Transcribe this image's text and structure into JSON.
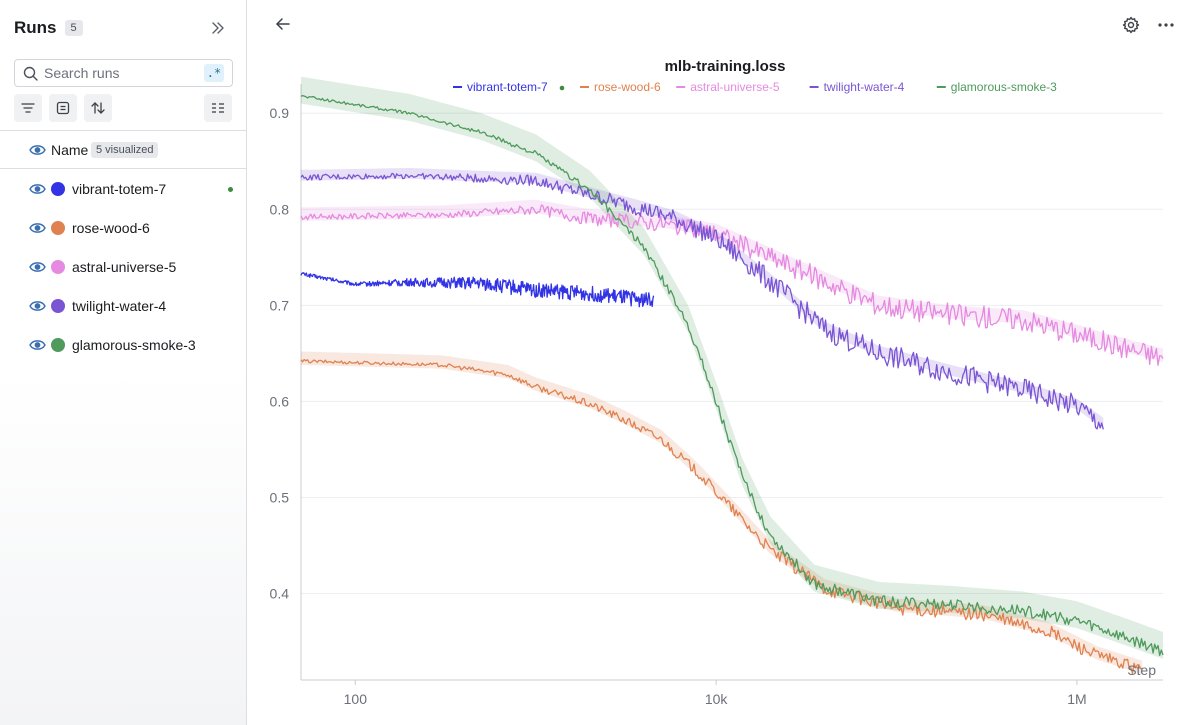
{
  "sidebar": {
    "title": "Runs",
    "runs_count": "5",
    "search": {
      "placeholder": "Search runs",
      "value": "",
      "regex_label": ".*"
    },
    "table": {
      "name_header": "Name",
      "visualized_badge": "5 visualized"
    },
    "runs": [
      {
        "name": "vibrant-totem-7",
        "color": "#3333e6",
        "live": true
      },
      {
        "name": "rose-wood-6",
        "color": "#e0824f",
        "live": false
      },
      {
        "name": "astral-universe-5",
        "color": "#e58ae0",
        "live": false
      },
      {
        "name": "twilight-water-4",
        "color": "#7a55d3",
        "live": false
      },
      {
        "name": "glamorous-smoke-3",
        "color": "#4f9a5c",
        "live": false
      }
    ]
  },
  "icons": {
    "back": "arrow-left-icon",
    "settings": "gear-icon",
    "more": "ellipsis-icon",
    "collapse": "chevrons-right-icon",
    "search": "search-icon",
    "filter": "filter-icon",
    "group": "group-icon",
    "sort": "sort-icon",
    "columns": "columns-icon",
    "visibility": "eye-icon"
  },
  "chart_data": {
    "type": "line",
    "title": "mlb-training.loss",
    "xlabel": "Step",
    "ylabel": "",
    "x_scale": "log",
    "xlim": [
      50,
      3000000
    ],
    "ylim": [
      0.31,
      0.92
    ],
    "x_ticks": [
      100,
      10000,
      1000000
    ],
    "x_tick_labels": [
      "100",
      "10k",
      "1M"
    ],
    "y_ticks": [
      0.4,
      0.5,
      0.6,
      0.7,
      0.8,
      0.9
    ],
    "y_tick_labels": [
      "0.4",
      "0.5",
      "0.6",
      "0.7",
      "0.8",
      "0.9"
    ],
    "grid": true,
    "legend_position": "top",
    "series": [
      {
        "name": "vibrant-totem-7",
        "color": "#3333e6",
        "live": true,
        "noise": 0.008,
        "band": 0,
        "points": [
          [
            50,
            0.733
          ],
          [
            100,
            0.722
          ],
          [
            200,
            0.724
          ],
          [
            500,
            0.723
          ],
          [
            1000,
            0.716
          ],
          [
            2000,
            0.712
          ],
          [
            3000,
            0.708
          ],
          [
            4500,
            0.705
          ]
        ]
      },
      {
        "name": "rose-wood-6",
        "color": "#e0824f",
        "live": false,
        "noise": 0.007,
        "band": 0.01,
        "points": [
          [
            50,
            0.642
          ],
          [
            300,
            0.638
          ],
          [
            700,
            0.628
          ],
          [
            1000,
            0.615
          ],
          [
            2000,
            0.597
          ],
          [
            3000,
            0.582
          ],
          [
            5000,
            0.56
          ],
          [
            8000,
            0.525
          ],
          [
            12000,
            0.49
          ],
          [
            20000,
            0.445
          ],
          [
            40000,
            0.405
          ],
          [
            100000,
            0.385
          ],
          [
            300000,
            0.378
          ],
          [
            700000,
            0.36
          ],
          [
            1300000,
            0.335
          ],
          [
            2300000,
            0.32
          ]
        ]
      },
      {
        "name": "astral-universe-5",
        "color": "#e58ae0",
        "live": false,
        "noise": 0.012,
        "band": 0.01,
        "points": [
          [
            50,
            0.792
          ],
          [
            300,
            0.794
          ],
          [
            1000,
            0.8
          ],
          [
            2000,
            0.79
          ],
          [
            5000,
            0.785
          ],
          [
            10000,
            0.775
          ],
          [
            20000,
            0.75
          ],
          [
            40000,
            0.725
          ],
          [
            80000,
            0.7
          ],
          [
            200000,
            0.69
          ],
          [
            500000,
            0.685
          ],
          [
            1000000,
            0.67
          ],
          [
            1500000,
            0.66
          ],
          [
            3000000,
            0.645
          ]
        ]
      },
      {
        "name": "twilight-water-4",
        "color": "#7a55d3",
        "live": false,
        "noise": 0.012,
        "band": 0.008,
        "points": [
          [
            50,
            0.833
          ],
          [
            200,
            0.835
          ],
          [
            500,
            0.832
          ],
          [
            1000,
            0.83
          ],
          [
            2000,
            0.815
          ],
          [
            4000,
            0.8
          ],
          [
            6000,
            0.79
          ],
          [
            10000,
            0.77
          ],
          [
            20000,
            0.725
          ],
          [
            40000,
            0.675
          ],
          [
            80000,
            0.65
          ],
          [
            200000,
            0.63
          ],
          [
            500000,
            0.612
          ],
          [
            1000000,
            0.595
          ],
          [
            1400000,
            0.575
          ]
        ]
      },
      {
        "name": "glamorous-smoke-3",
        "color": "#4f9a5c",
        "live": false,
        "noise": 0.006,
        "band": 0.02,
        "points": [
          [
            50,
            0.918
          ],
          [
            200,
            0.9
          ],
          [
            500,
            0.88
          ],
          [
            1000,
            0.858
          ],
          [
            2000,
            0.82
          ],
          [
            4000,
            0.76
          ],
          [
            7000,
            0.68
          ],
          [
            10000,
            0.6
          ],
          [
            14000,
            0.52
          ],
          [
            20000,
            0.46
          ],
          [
            35000,
            0.41
          ],
          [
            80000,
            0.392
          ],
          [
            200000,
            0.388
          ],
          [
            500000,
            0.382
          ],
          [
            1000000,
            0.372
          ],
          [
            2000000,
            0.352
          ],
          [
            3000000,
            0.34
          ]
        ]
      }
    ]
  }
}
